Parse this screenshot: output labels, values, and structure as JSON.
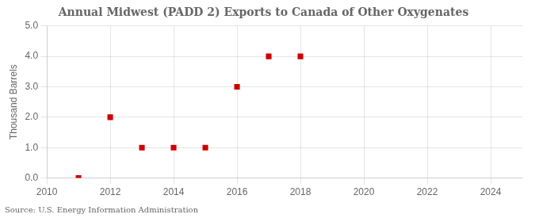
{
  "chart_data": {
    "type": "scatter",
    "title": "Annual Midwest (PADD 2) Exports to Canada of Other Oxygenates",
    "ylabel": "Thousand Barrels",
    "source": "Source: U.S. Energy Information Administration",
    "x": [
      2011,
      2012,
      2013,
      2014,
      2015,
      2016,
      2017,
      2018
    ],
    "values": [
      0.0,
      2.0,
      1.0,
      1.0,
      1.0,
      3.0,
      4.0,
      4.0
    ],
    "color": "#cc0000",
    "marker": "square",
    "xlim": [
      2010,
      2025
    ],
    "ylim": [
      0.0,
      5.0
    ],
    "xticks": [
      2010,
      2012,
      2014,
      2016,
      2018,
      2020,
      2022,
      2024
    ],
    "yticks": [
      {
        "value": 0.0,
        "label": "0.0"
      },
      {
        "value": 1.0,
        "label": "1.0"
      },
      {
        "value": 2.0,
        "label": "2.0"
      },
      {
        "value": 3.0,
        "label": "3.0"
      },
      {
        "value": 4.0,
        "label": "4.0"
      },
      {
        "value": 5.0,
        "label": "5.0"
      }
    ],
    "grid": true
  }
}
